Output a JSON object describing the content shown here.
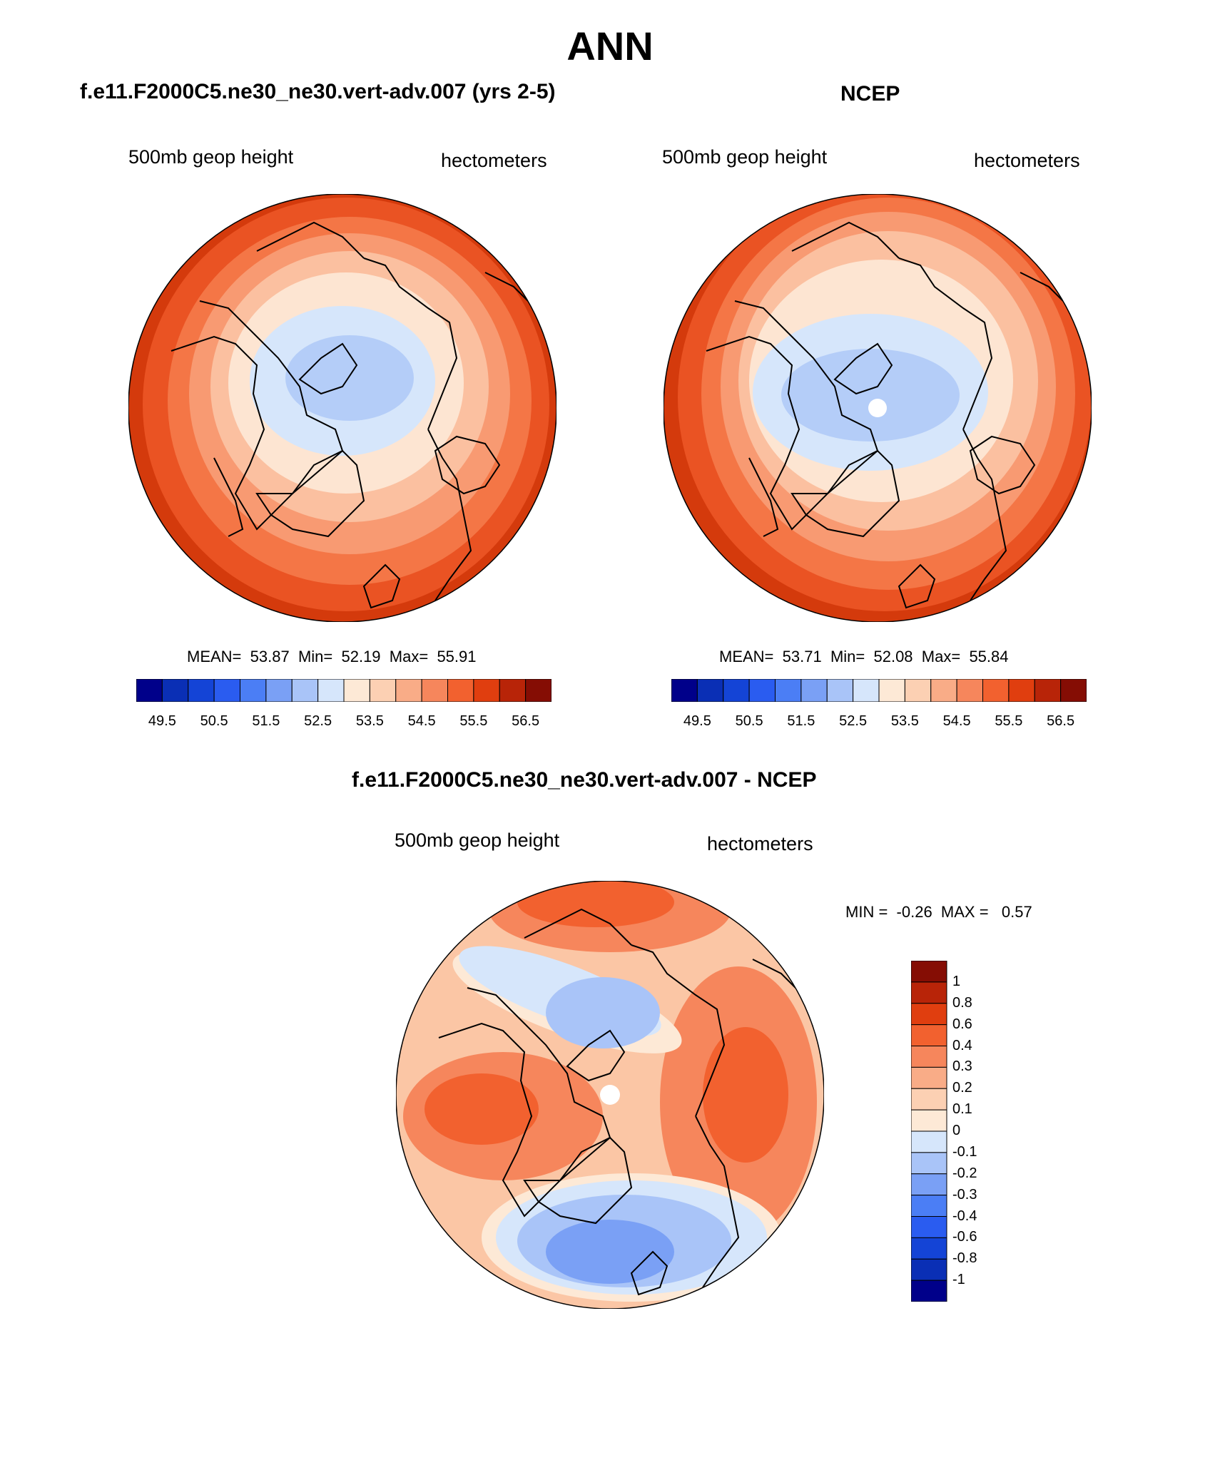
{
  "figure": {
    "title": "ANN",
    "left_title": "f.e11.F2000C5.ne30_ne30.vert-adv.007 (yrs 2-5)",
    "right_title": "NCEP",
    "diff_title": "f.e11.F2000C5.ne30_ne30.vert-adv.007 - NCEP"
  },
  "panels": [
    {
      "variable": "500mb geop height",
      "units": "hectometers",
      "stats": {
        "mean_label": "MEAN=",
        "mean": "53.87",
        "min_label": "Min=",
        "min": "52.19",
        "max_label": "Max=",
        "max": "55.91"
      }
    },
    {
      "variable": "500mb geop height",
      "units": "hectometers",
      "stats": {
        "mean_label": "MEAN=",
        "mean": "53.71",
        "min_label": "Min=",
        "min": "52.08",
        "max_label": "Max=",
        "max": "55.84"
      }
    },
    {
      "variable": "500mb geop height",
      "units": "hectometers",
      "stats": {
        "min_label": "MIN =",
        "min": "-0.26",
        "max_label": "MAX =",
        "max": "0.57"
      }
    }
  ],
  "colorbar_abs": {
    "colors": [
      "#00008a",
      "#0a2fb5",
      "#1444d6",
      "#2a5cf0",
      "#4b7ef5",
      "#7aa0f5",
      "#a9c4f8",
      "#d6e6fb",
      "#fde9d6",
      "#fcd0b3",
      "#f9ac87",
      "#f6865c",
      "#f2612f",
      "#e03e0f",
      "#b82408",
      "#850d04"
    ],
    "ticks": [
      "49.5",
      "50.5",
      "51.5",
      "52.5",
      "53.5",
      "54.5",
      "55.5",
      "56.5"
    ]
  },
  "colorbar_diff": {
    "colors": [
      "#850d04",
      "#b82408",
      "#e03e0f",
      "#f2612f",
      "#f6865c",
      "#f9ac87",
      "#fcd0b3",
      "#fde9d6",
      "#d6e6fb",
      "#a9c4f8",
      "#7aa0f5",
      "#4b7ef5",
      "#2a5cf0",
      "#1444d6",
      "#0a2fb5",
      "#00008a"
    ],
    "ticks": [
      "1",
      "0.8",
      "0.6",
      "0.4",
      "0.3",
      "0.2",
      "0.1",
      "0",
      "-0.1",
      "-0.2",
      "-0.3",
      "-0.4",
      "-0.6",
      "-0.8",
      "-1"
    ]
  }
}
